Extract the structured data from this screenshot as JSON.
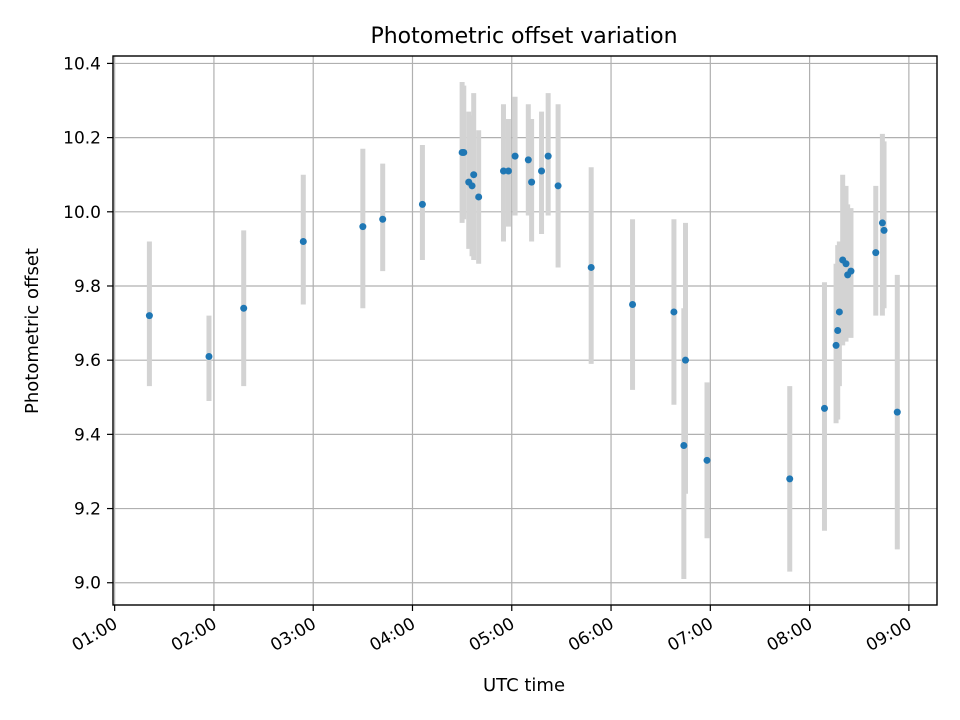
{
  "chart_data": {
    "type": "scatter",
    "title": "Photometric offset variation",
    "xlabel": "UTC time",
    "ylabel": "Photometric offset",
    "xlim": [
      "00:59",
      "09:17"
    ],
    "ylim": [
      8.94,
      10.42
    ],
    "x_ticks": [
      "01:00",
      "02:00",
      "03:00",
      "04:00",
      "05:00",
      "06:00",
      "07:00",
      "08:00",
      "09:00"
    ],
    "y_ticks": [
      9.0,
      9.2,
      9.4,
      9.6,
      9.8,
      10.0,
      10.2,
      10.4
    ],
    "grid": true,
    "marker_color": "#1f77b4",
    "errorbar_color": "#d3d3d3",
    "points": [
      {
        "t": "01:21",
        "y": 9.72,
        "lo": 9.53,
        "hi": 9.92
      },
      {
        "t": "01:57",
        "y": 9.61,
        "lo": 9.49,
        "hi": 9.72
      },
      {
        "t": "02:18",
        "y": 9.74,
        "lo": 9.53,
        "hi": 9.95
      },
      {
        "t": "02:54",
        "y": 9.92,
        "lo": 9.75,
        "hi": 10.1
      },
      {
        "t": "03:30",
        "y": 9.96,
        "lo": 9.74,
        "hi": 10.17
      },
      {
        "t": "03:42",
        "y": 9.98,
        "lo": 9.84,
        "hi": 10.13
      },
      {
        "t": "04:06",
        "y": 10.02,
        "lo": 9.87,
        "hi": 10.18
      },
      {
        "t": "04:30",
        "y": 10.16,
        "lo": 9.97,
        "hi": 10.35
      },
      {
        "t": "04:31",
        "y": 10.16,
        "lo": 9.98,
        "hi": 10.34
      },
      {
        "t": "04:34",
        "y": 10.08,
        "lo": 9.9,
        "hi": 10.27
      },
      {
        "t": "04:36",
        "y": 10.07,
        "lo": 9.88,
        "hi": 10.26
      },
      {
        "t": "04:37",
        "y": 10.1,
        "lo": 9.87,
        "hi": 10.32
      },
      {
        "t": "04:40",
        "y": 10.04,
        "lo": 9.86,
        "hi": 10.22
      },
      {
        "t": "04:55",
        "y": 10.11,
        "lo": 9.92,
        "hi": 10.29
      },
      {
        "t": "04:58",
        "y": 10.11,
        "lo": 9.96,
        "hi": 10.25
      },
      {
        "t": "05:02",
        "y": 10.15,
        "lo": 9.99,
        "hi": 10.31
      },
      {
        "t": "05:10",
        "y": 10.14,
        "lo": 9.99,
        "hi": 10.29
      },
      {
        "t": "05:12",
        "y": 10.08,
        "lo": 9.92,
        "hi": 10.25
      },
      {
        "t": "05:18",
        "y": 10.11,
        "lo": 9.94,
        "hi": 10.27
      },
      {
        "t": "05:22",
        "y": 10.15,
        "lo": 9.99,
        "hi": 10.32
      },
      {
        "t": "05:28",
        "y": 10.07,
        "lo": 9.85,
        "hi": 10.29
      },
      {
        "t": "05:48",
        "y": 9.85,
        "lo": 9.59,
        "hi": 10.12
      },
      {
        "t": "06:13",
        "y": 9.75,
        "lo": 9.52,
        "hi": 9.98
      },
      {
        "t": "06:38",
        "y": 9.73,
        "lo": 9.48,
        "hi": 9.98
      },
      {
        "t": "06:44",
        "y": 9.37,
        "lo": 9.01,
        "hi": 9.74
      },
      {
        "t": "06:45",
        "y": 9.6,
        "lo": 9.24,
        "hi": 9.97
      },
      {
        "t": "06:58",
        "y": 9.33,
        "lo": 9.12,
        "hi": 9.54
      },
      {
        "t": "07:48",
        "y": 9.28,
        "lo": 9.03,
        "hi": 9.53
      },
      {
        "t": "08:09",
        "y": 9.47,
        "lo": 9.14,
        "hi": 9.81
      },
      {
        "t": "08:16",
        "y": 9.64,
        "lo": 9.43,
        "hi": 9.86
      },
      {
        "t": "08:17",
        "y": 9.68,
        "lo": 9.44,
        "hi": 9.91
      },
      {
        "t": "08:18",
        "y": 9.73,
        "lo": 9.53,
        "hi": 9.92
      },
      {
        "t": "08:20",
        "y": 9.87,
        "lo": 9.64,
        "hi": 10.1
      },
      {
        "t": "08:22",
        "y": 9.86,
        "lo": 9.65,
        "hi": 10.07
      },
      {
        "t": "08:23",
        "y": 9.83,
        "lo": 9.67,
        "hi": 10.02
      },
      {
        "t": "08:25",
        "y": 9.84,
        "lo": 9.66,
        "hi": 10.01
      },
      {
        "t": "08:40",
        "y": 9.89,
        "lo": 9.72,
        "hi": 10.07
      },
      {
        "t": "08:44",
        "y": 9.97,
        "lo": 9.72,
        "hi": 10.21
      },
      {
        "t": "08:45",
        "y": 9.95,
        "lo": 9.74,
        "hi": 10.19
      },
      {
        "t": "08:53",
        "y": 9.46,
        "lo": 9.09,
        "hi": 9.83
      }
    ]
  }
}
